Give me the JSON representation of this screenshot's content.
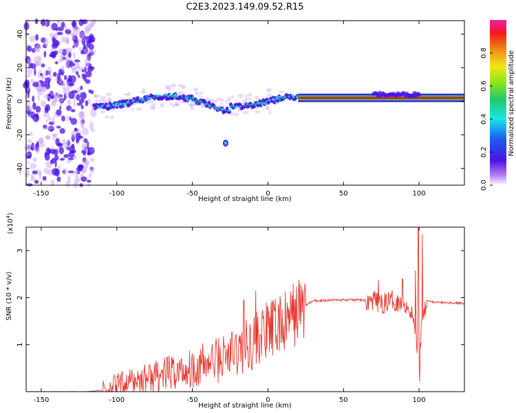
{
  "figure": {
    "title": "C2E3.2023.149.09.52.R15"
  },
  "chart_data": [
    {
      "type": "heatmap",
      "xlabel": "Height of straight line (km)",
      "ylabel": "Frequency (Hz)",
      "xlim": [
        -160,
        130
      ],
      "ylim": [
        -50,
        48
      ],
      "xticks": [
        -150,
        -100,
        -50,
        0,
        50,
        100
      ],
      "yticks": [
        -40,
        -20,
        0,
        20,
        40
      ],
      "colorbar": {
        "label": "Normalized spectral amplitude",
        "range": [
          0,
          1
        ],
        "ticks": [
          0.0,
          0.2,
          0.4,
          0.6,
          0.8
        ],
        "colormap": "rainbow (white → purple → blue → cyan → green → yellow → orange → red → magenta)"
      },
      "colors": {
        "low": "#c59cf2",
        "mid_low": "#4c12e6",
        "mid": "#19e6e6",
        "high": "#22c86a",
        "peak": "#f20f19"
      },
      "features": [
        {
          "region": "x -160 to -115",
          "description": "broadband noise across all frequencies",
          "amplitude": 0.1
        },
        {
          "region": "x -115 to 20",
          "description": "main signal near 0 Hz, wavering ±5 Hz",
          "amplitude": 0.4
        },
        {
          "region": "x 20 to 130",
          "description": "steady narrow line near 2 Hz",
          "amplitude": 0.9
        },
        {
          "region": "x ≈ -28, y ≈ -25 Hz",
          "description": "isolated blob",
          "amplitude": 0.3
        }
      ]
    },
    {
      "type": "line",
      "xlabel": "Height of straight line (km)",
      "ylabel": "SNR (10 * v/v)",
      "scale_note": "(x10",
      "scale_exp": "4",
      "scale_close": ")",
      "xlim": [
        -160,
        130
      ],
      "ylim": [
        0,
        3.5
      ],
      "xticks": [
        -150,
        -100,
        -50,
        0,
        50,
        100
      ],
      "yticks": [
        1,
        2,
        3
      ],
      "series": [
        {
          "color": "#e8342c",
          "trend_x": [
            -160,
            -120,
            -110,
            -100,
            -80,
            -60,
            -40,
            -20,
            0,
            10,
            20,
            30,
            40,
            60,
            70,
            75,
            80,
            90,
            95,
            98,
            100,
            102,
            105,
            110,
            130
          ],
          "trend_y": [
            0.0,
            0.0,
            0.03,
            0.15,
            0.3,
            0.42,
            0.6,
            0.85,
            1.3,
            1.4,
            1.75,
            1.93,
            1.95,
            1.95,
            1.93,
            1.85,
            1.95,
            1.9,
            1.7,
            1.2,
            0.6,
            1.6,
            1.95,
            1.9,
            1.88
          ],
          "spikes": [
            {
              "x": 99.5,
              "y": 3.48
            },
            {
              "x": 102,
              "y": 3.35
            },
            {
              "x": 100.5,
              "y": 0.22
            },
            {
              "x": 97.5,
              "y": 2.58
            },
            {
              "x": 73,
              "y": 2.38
            },
            {
              "x": 89,
              "y": 2.4
            },
            {
              "x": -8,
              "y": 2.15
            },
            {
              "x": -16,
              "y": 1.95
            },
            {
              "x": 8,
              "y": 2.03
            },
            {
              "x": 18,
              "y": 1.97
            }
          ]
        }
      ]
    }
  ]
}
